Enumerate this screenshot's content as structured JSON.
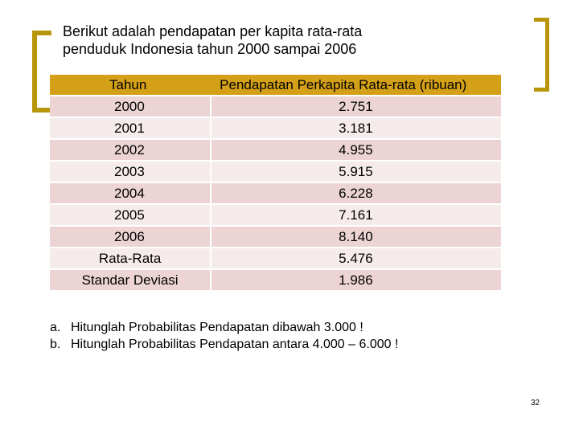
{
  "title_lines": [
    "Berikut adalah pendapatan per kapita rata-rata",
    "penduduk Indonesia tahun 2000 sampai 2006"
  ],
  "table": {
    "headers": [
      "Tahun",
      "Pendapatan Perkapita Rata-rata (ribuan)"
    ],
    "rows": [
      [
        "2000",
        "2.751"
      ],
      [
        "2001",
        "3.181"
      ],
      [
        "2002",
        "4.955"
      ],
      [
        "2003",
        "5.915"
      ],
      [
        "2004",
        "6.228"
      ],
      [
        "2005",
        "7.161"
      ],
      [
        "2006",
        "8.140"
      ],
      [
        "Rata-Rata",
        "5.476"
      ],
      [
        "Standar Deviasi",
        "1.986"
      ]
    ]
  },
  "questions": [
    {
      "mark": "a.",
      "text": "Hitunglah Probabilitas Pendapatan dibawah 3.000 !"
    },
    {
      "mark": "b.",
      "text": "Hitunglah Probabilitas Pendapatan antara 4.000 – 6.000 !"
    }
  ],
  "page_number": "32",
  "colors": {
    "accent": "#b8960c",
    "header_fill": "#d4a017",
    "row_odd": "#ecd4d4",
    "row_even": "#f6ebeb"
  }
}
